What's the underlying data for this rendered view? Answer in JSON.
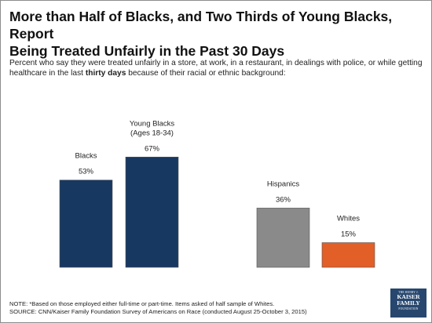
{
  "title": "More than Half of Blacks, and Two Thirds of Young Blacks, Report\nBeing Treated Unfairly in the Past 30 Days",
  "subtitle": {
    "before": "Percent who say they were treated unfairly in a store, at work, in a restaurant, in dealings with police, or while getting healthcare in the last ",
    "bold": "thirty days",
    "after": " because of their racial or ethnic background:"
  },
  "chart_data": {
    "type": "bar",
    "categories": [
      "Blacks",
      "Young Blacks\n(Ages 18-34)",
      "Hispanics",
      "Whites"
    ],
    "values": [
      53,
      67,
      36,
      15
    ],
    "value_labels": [
      "53%",
      "67%",
      "36%",
      "15%"
    ],
    "colors": [
      "#173861",
      "#173861",
      "#8a8a8a",
      "#e25f28"
    ],
    "unit": "%",
    "ylim": [
      0,
      100
    ],
    "grid": false,
    "legend": "none"
  },
  "notes": {
    "line1": "NOTE: *Based on those employed either full-time or part-time. Items asked of half sample of Whites.",
    "line2": "SOURCE: CNN/Kaiser Family Foundation Survey of Americans on Race (conducted August 25-October 3, 2015)"
  },
  "logo": {
    "line1": "THE HENRY J.",
    "line2": "KAISER",
    "line3": "FAMILY",
    "line4": "FOUNDATION",
    "color": "#27476e"
  }
}
